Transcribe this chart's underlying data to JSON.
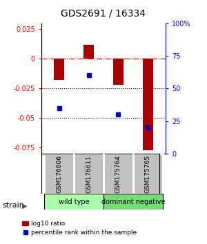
{
  "title": "GDS2691 / 16334",
  "samples": [
    "GSM176606",
    "GSM176611",
    "GSM175764",
    "GSM175765"
  ],
  "log10_ratio": [
    -0.018,
    0.012,
    -0.022,
    -0.077
  ],
  "percentile_rank_pct": [
    35,
    60,
    30,
    20
  ],
  "ylim_left": [
    -0.08,
    0.03
  ],
  "ylim_right": [
    0,
    100
  ],
  "yticks_left": [
    -0.075,
    -0.05,
    -0.025,
    0.0,
    0.025
  ],
  "ytick_labels_left": [
    "-0.075",
    "-0.05",
    "-0.025",
    "0",
    "0.025"
  ],
  "yticks_right": [
    0,
    25,
    50,
    75,
    100
  ],
  "ytick_labels_right": [
    "0",
    "25",
    "50",
    "75",
    "100%"
  ],
  "bar_color": "#aa0000",
  "dot_color": "#0000cc",
  "groups": [
    {
      "label": "wild type",
      "indices": [
        0,
        1
      ],
      "color": "#aaffaa"
    },
    {
      "label": "dominant negative",
      "indices": [
        2,
        3
      ],
      "color": "#77dd77"
    }
  ],
  "group_label": "strain",
  "legend_bar": "log10 ratio",
  "legend_dot": "percentile rank within the sample",
  "bar_width": 0.35
}
